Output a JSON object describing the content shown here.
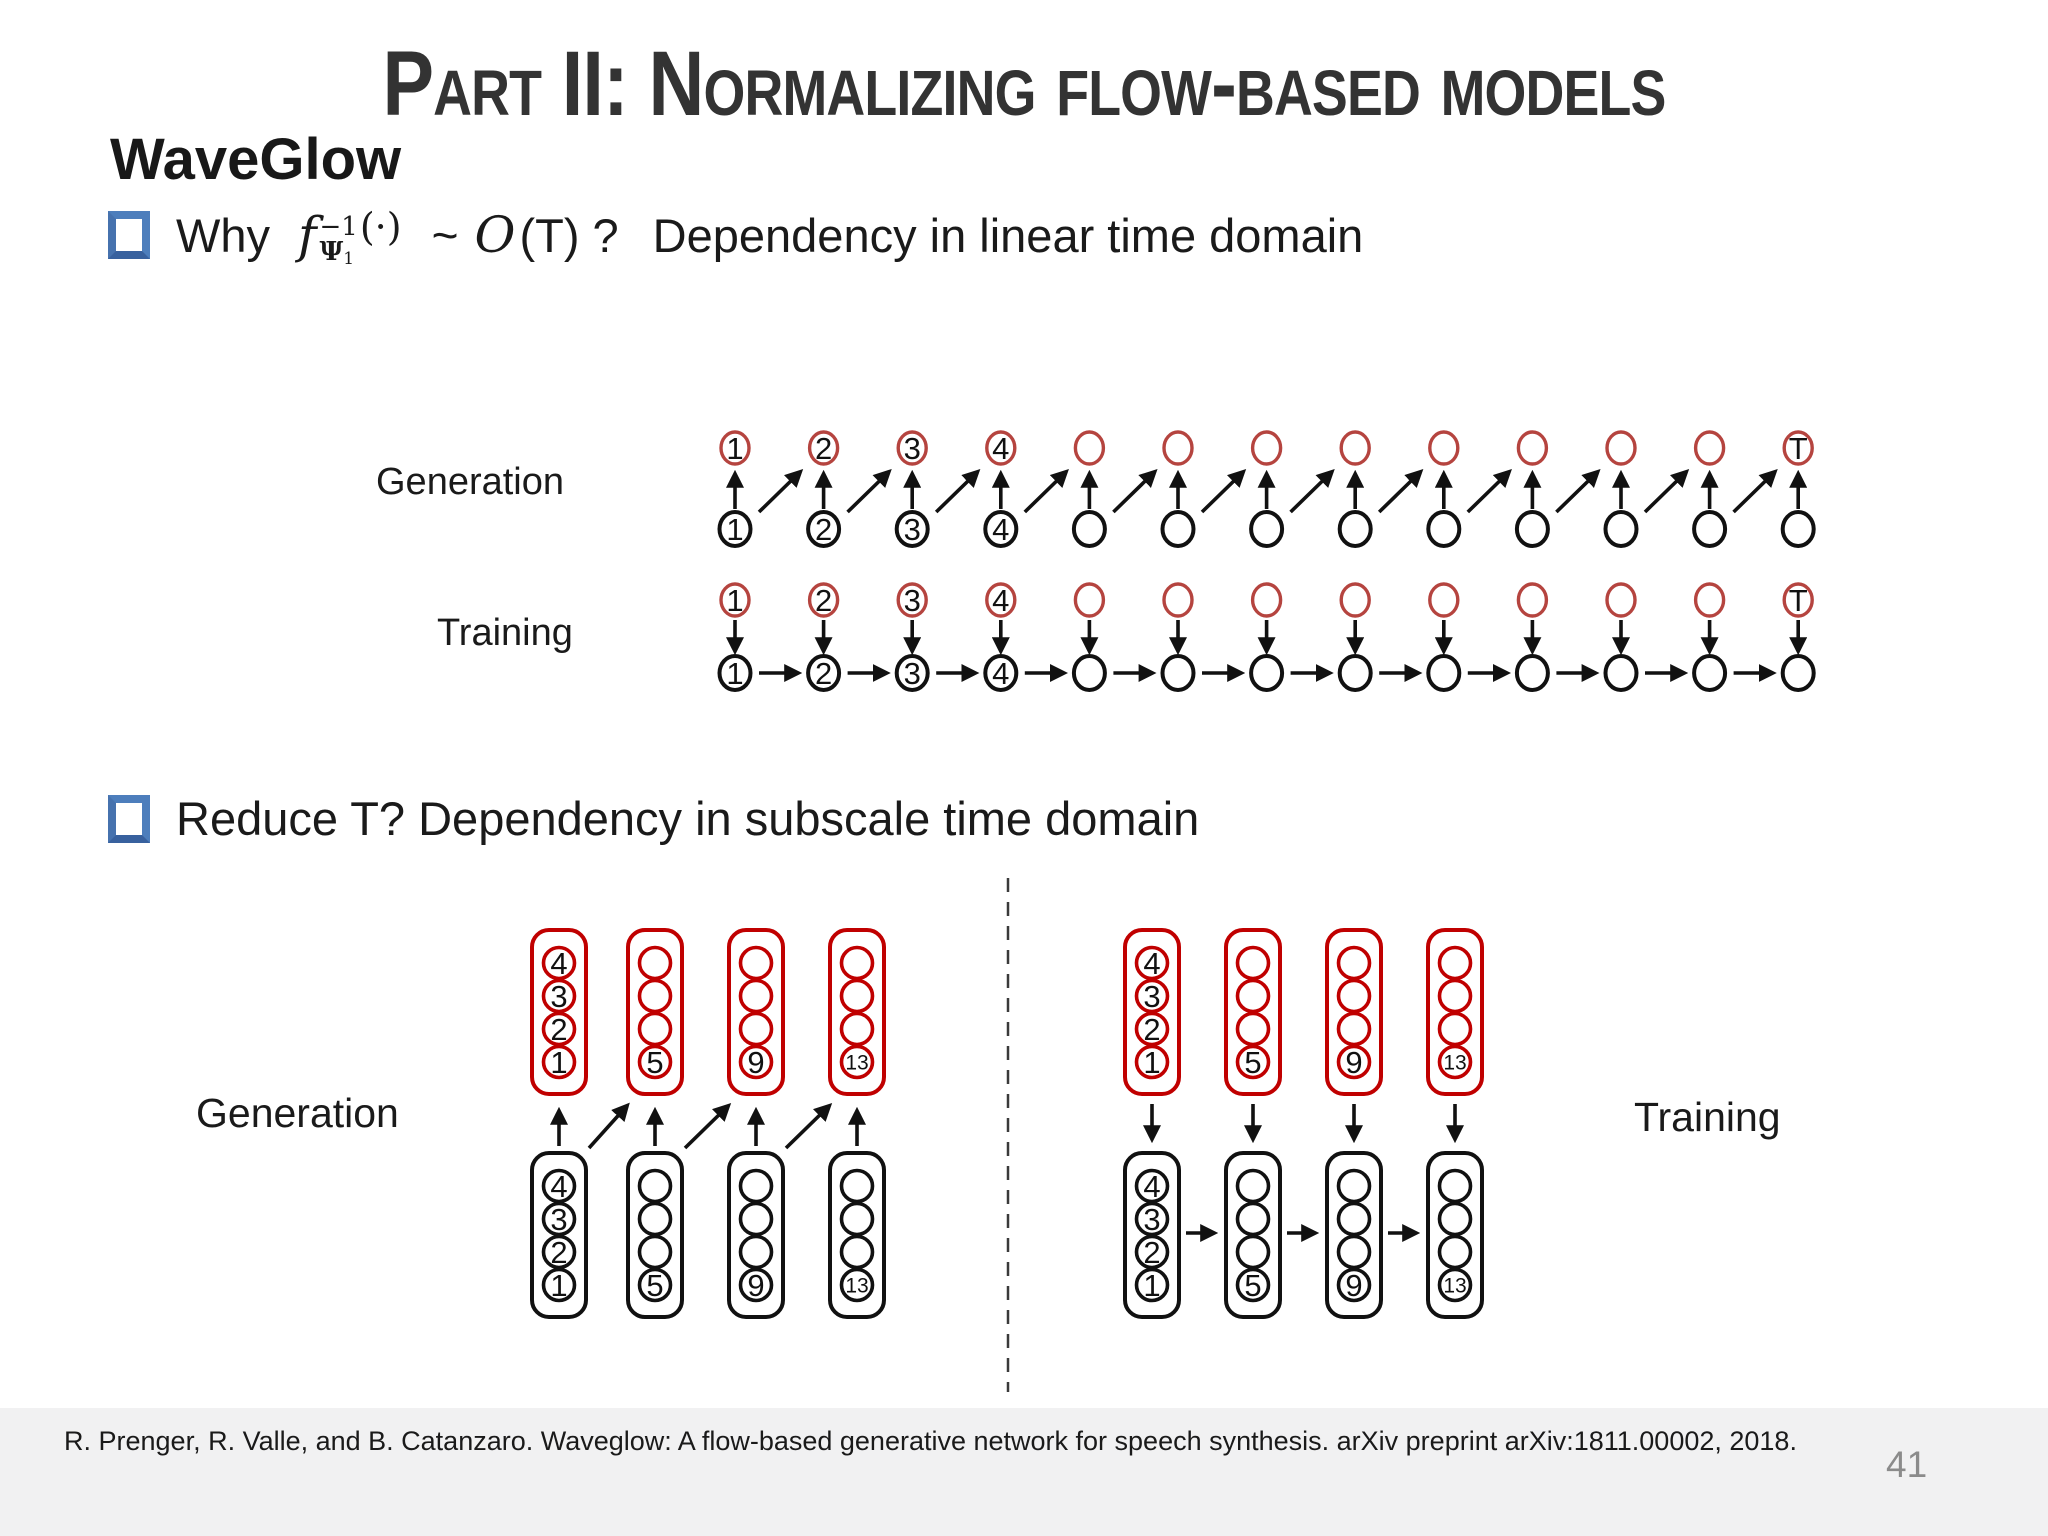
{
  "slide": {
    "title": "Part II: Normalizing flow-based models",
    "subtitle": "WaveGlow"
  },
  "bullets": {
    "why": {
      "lead": "Why",
      "math": {
        "f": "f",
        "sup": "−1",
        "sub": "Ψ",
        "subsub": "1",
        "arg": "(·)"
      },
      "tilde": "~",
      "big_o": "O",
      "after_o": "(T) ?",
      "rest": "Dependency in linear time domain"
    },
    "reduce": {
      "text": "Reduce T? Dependency in subscale time domain"
    }
  },
  "linear_diagram": {
    "generation_label": "Generation",
    "training_label": "Training",
    "top_labels": [
      "1",
      "2",
      "3",
      "4",
      "",
      "",
      "",
      "",
      "",
      "",
      "",
      "",
      "T"
    ],
    "bottom_labels": [
      "1",
      "2",
      "3",
      "4",
      "",
      "",
      "",
      "",
      "",
      "",
      "",
      "",
      ""
    ]
  },
  "subscale_diagram": {
    "generation_label": "Generation",
    "training_label": "Training",
    "capsule_labels": [
      [
        "4",
        "3",
        "2",
        "1"
      ],
      [
        "",
        "",
        "",
        "5"
      ],
      [
        "",
        "",
        "",
        "9"
      ],
      [
        "",
        "",
        "",
        "13"
      ]
    ]
  },
  "footer": {
    "citation": "R. Prenger, R. Valle, and B. Catanzaro. Waveglow: A flow-based generative network for speech synthesis. arXiv preprint arXiv:1811.00002, 2018.",
    "page_number": "41"
  },
  "colors": {
    "node_red": "#b5443f",
    "capsule_red": "#c00000",
    "ink_black": "#111111",
    "bullet_blue": "#4d7ebc",
    "footer_bg": "#f1f1f2",
    "page_gray": "#8b8b8b",
    "divider_gray": "#3a3a3a"
  }
}
